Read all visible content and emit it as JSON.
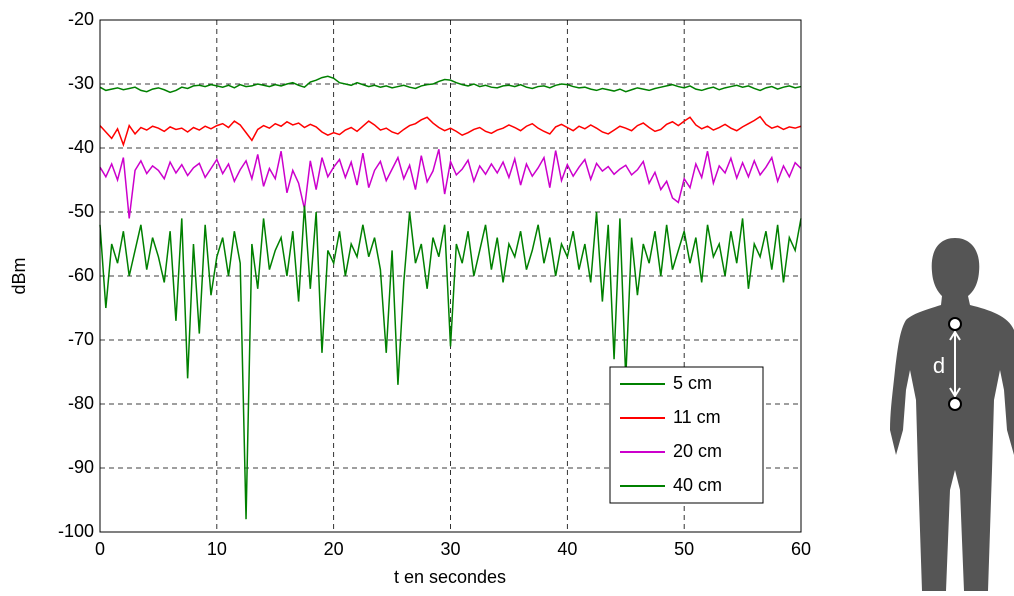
{
  "chart_data": {
    "type": "line",
    "xlabel": "t en secondes",
    "ylabel": "dBm",
    "annotations": [
      "d"
    ],
    "xlim": [
      0,
      60
    ],
    "ylim": [
      -100,
      -20
    ],
    "xticks": [
      0,
      10,
      20,
      30,
      40,
      50,
      60
    ],
    "yticks": [
      -100,
      -90,
      -80,
      -70,
      -60,
      -50,
      -40,
      -30,
      -20
    ],
    "grid": true,
    "legend": "lower right",
    "x": [
      0,
      0.5,
      1,
      1.5,
      2,
      2.5,
      3,
      3.5,
      4,
      4.5,
      5,
      5.5,
      6,
      6.5,
      7,
      7.5,
      8,
      8.5,
      9,
      9.5,
      10,
      10.5,
      11,
      11.5,
      12,
      12.5,
      13,
      13.5,
      14,
      14.5,
      15,
      15.5,
      16,
      16.5,
      17,
      17.5,
      18,
      18.5,
      19,
      19.5,
      20,
      20.5,
      21,
      21.5,
      22,
      22.5,
      23,
      23.5,
      24,
      24.5,
      25,
      25.5,
      26,
      26.5,
      27,
      27.5,
      28,
      28.5,
      29,
      29.5,
      30,
      30.5,
      31,
      31.5,
      32,
      32.5,
      33,
      33.5,
      34,
      34.5,
      35,
      35.5,
      36,
      36.5,
      37,
      37.5,
      38,
      38.5,
      39,
      39.5,
      40,
      40.5,
      41,
      41.5,
      42,
      42.5,
      43,
      43.5,
      44,
      44.5,
      45,
      45.5,
      46,
      46.5,
      47,
      47.5,
      48,
      48.5,
      49,
      49.5,
      50,
      50.5,
      51,
      51.5,
      52,
      52.5,
      53,
      53.5,
      54,
      54.5,
      55,
      55.5,
      56,
      56.5,
      57,
      57.5,
      58,
      58.5,
      59,
      59.5,
      60
    ],
    "series": [
      {
        "name": "5 cm",
        "color": "#008000",
        "values": [
          -30.5,
          -31,
          -30.8,
          -30.6,
          -30.9,
          -30.7,
          -30.5,
          -31,
          -31.2,
          -30.8,
          -30.6,
          -30.9,
          -31.3,
          -31,
          -30.5,
          -30.7,
          -30.3,
          -30.2,
          -30.4,
          -30.1,
          -30.3,
          -30.5,
          -30.2,
          -30.6,
          -30.1,
          -30.4,
          -30.3,
          -30.0,
          -30.2,
          -30.4,
          -30.1,
          -30.3,
          -30.0,
          -29.8,
          -30.2,
          -30.5,
          -29.7,
          -29.4,
          -29.0,
          -28.8,
          -29.1,
          -29.8,
          -30.0,
          -30.2,
          -29.8,
          -30.1,
          -30.4,
          -30.2,
          -30.5,
          -30.3,
          -30.6,
          -30.4,
          -30.2,
          -30.5,
          -30.7,
          -30.3,
          -30.1,
          -30.0,
          -29.6,
          -29.3,
          -29.4,
          -29.8,
          -30.1,
          -30.3,
          -30.0,
          -30.4,
          -30.2,
          -30.5,
          -30.6,
          -30.3,
          -30.2,
          -30.4,
          -30.1,
          -30.5,
          -30.7,
          -30.4,
          -30.3,
          -30.6,
          -30.2,
          -30.0,
          -30.1,
          -30.4,
          -30.6,
          -30.5,
          -30.8,
          -31.0,
          -30.7,
          -30.9,
          -31.1,
          -30.8,
          -31.2,
          -30.9,
          -30.6,
          -30.8,
          -31.0,
          -30.7,
          -30.5,
          -30.3,
          -30.1,
          -30.4,
          -30.6,
          -30.3,
          -30.8,
          -31.0,
          -30.7,
          -30.5,
          -30.9,
          -30.6,
          -30.4,
          -30.2,
          -30.5,
          -30.3,
          -30.7,
          -31.0,
          -30.6,
          -30.4,
          -30.8,
          -30.5,
          -30.3,
          -30.6,
          -30.4
        ]
      },
      {
        "name": "11 cm",
        "color": "#ff0000",
        "values": [
          -36.5,
          -37.5,
          -38.5,
          -37,
          -39.5,
          -36.5,
          -37.8,
          -36.8,
          -37.2,
          -36.6,
          -36.9,
          -37.4,
          -36.7,
          -37.1,
          -36.9,
          -37.5,
          -36.8,
          -37.2,
          -36.6,
          -37,
          -36.5,
          -36.2,
          -36.8,
          -35.8,
          -36.4,
          -37.6,
          -38.8,
          -37.1,
          -36.5,
          -36.9,
          -36.2,
          -36.6,
          -35.9,
          -36.4,
          -36.1,
          -36.8,
          -36.3,
          -36.7,
          -37.5,
          -38,
          -37.6,
          -37.9,
          -37.2,
          -36.8,
          -37.4,
          -36.6,
          -35.8,
          -36.4,
          -37.2,
          -36.9,
          -37.5,
          -37.8,
          -37.1,
          -36.5,
          -36.2,
          -35.6,
          -35.2,
          -36.1,
          -36.8,
          -37.3,
          -36.9,
          -37.4,
          -38,
          -37.6,
          -37.1,
          -36.8,
          -37.4,
          -37.7,
          -37.2,
          -36.9,
          -36.4,
          -36.8,
          -37.3,
          -36.6,
          -36.2,
          -36.9,
          -37.4,
          -37.8,
          -36.7,
          -36.3,
          -36.8,
          -37.3,
          -36.6,
          -37,
          -36.4,
          -36.9,
          -37.5,
          -37.8,
          -37.2,
          -36.6,
          -36.9,
          -37.3,
          -36.5,
          -36.1,
          -36.8,
          -37.4,
          -37.1,
          -36.3,
          -35.9,
          -36.5,
          -35.8,
          -35.2,
          -36.4,
          -37,
          -36.6,
          -37.2,
          -36.8,
          -36.3,
          -36.9,
          -37.3,
          -36.7,
          -36.2,
          -35.7,
          -35.1,
          -36.3,
          -36.9,
          -36.6,
          -37.1,
          -36.7,
          -36.9,
          -36.6
        ]
      },
      {
        "name": "20 cm",
        "color": "#cc00cc",
        "values": [
          -43,
          -44.5,
          -42.5,
          -45,
          -41.5,
          -51,
          -43.5,
          -42,
          -44,
          -42.8,
          -43.5,
          -44.8,
          -42.2,
          -43.9,
          -42.6,
          -44.3,
          -43.1,
          -42.4,
          -44.6,
          -43.2,
          -41.8,
          -44,
          -42.5,
          -45.2,
          -43.4,
          -42,
          -44.8,
          -41,
          -46,
          -43.2,
          -44.8,
          -40.5,
          -47,
          -43.5,
          -45.5,
          -49.5,
          -42,
          -46.5,
          -41.5,
          -44.5,
          -43,
          -41.8,
          -44.6,
          -42.2,
          -45.8,
          -40.8,
          -46.2,
          -43.5,
          -42.1,
          -45.1,
          -43.3,
          -41.5,
          -44.8,
          -42.7,
          -46.5,
          -41.2,
          -45.3,
          -43.6,
          -40.2,
          -47.2,
          -42.1,
          -44.2,
          -43.3,
          -41.9,
          -45.2,
          -42.8,
          -44.1,
          -42.5,
          -43.9,
          -42.2,
          -44.6,
          -41.7,
          -45.8,
          -42.5,
          -44.4,
          -43.1,
          -41.5,
          -46.2,
          -40.4,
          -45.1,
          -42.6,
          -44.4,
          -43,
          -41.8,
          -44.9,
          -42.4,
          -43.6,
          -42.9,
          -44.1,
          -43.3,
          -42.7,
          -44.2,
          -43.4,
          -42.1,
          -45.5,
          -43.8,
          -46.5,
          -45.2,
          -47.8,
          -48.5,
          -44.8,
          -46.2,
          -42.5,
          -44.6,
          -40.5,
          -45.5,
          -42.8,
          -43.9,
          -41.6,
          -44.7,
          -42.3,
          -44.5,
          -42,
          -44.2,
          -43,
          -41.5,
          -45.2,
          -42.8,
          -44.5,
          -42.3,
          -43.2
        ]
      },
      {
        "name": "40 cm",
        "color": "#008000",
        "values": [
          -52,
          -65,
          -55,
          -58,
          -53,
          -60,
          -56,
          -52,
          -59,
          -54,
          -57,
          -61,
          -53,
          -67,
          -51,
          -76,
          -55,
          -69,
          -52,
          -63,
          -57,
          -54,
          -60,
          -53,
          -58,
          -98,
          -55,
          -62,
          -51,
          -59,
          -56,
          -54,
          -60,
          -53,
          -64,
          -49,
          -62,
          -50,
          -72,
          -56,
          -58,
          -53,
          -60,
          -55,
          -57,
          -52,
          -57,
          -54,
          -59,
          -72,
          -56,
          -77,
          -61,
          -50,
          -58,
          -55,
          -62,
          -54,
          -57,
          -52,
          -71,
          -55,
          -58,
          -53,
          -60,
          -56,
          -52,
          -59,
          -54,
          -61,
          -55,
          -57,
          -53,
          -59,
          -56,
          -52,
          -58,
          -54,
          -60,
          -55,
          -57,
          -53,
          -59,
          -55,
          -61,
          -50,
          -64,
          -52,
          -73,
          -51,
          -76,
          -54,
          -63,
          -55,
          -58,
          -53,
          -60,
          -52,
          -59,
          -56,
          -53,
          -58,
          -54,
          -61,
          -52,
          -57,
          -55,
          -60,
          -53,
          -58,
          -51,
          -62,
          -55,
          -57,
          -53,
          -59,
          -52,
          -61,
          -54,
          -56,
          -51
        ]
      }
    ]
  }
}
